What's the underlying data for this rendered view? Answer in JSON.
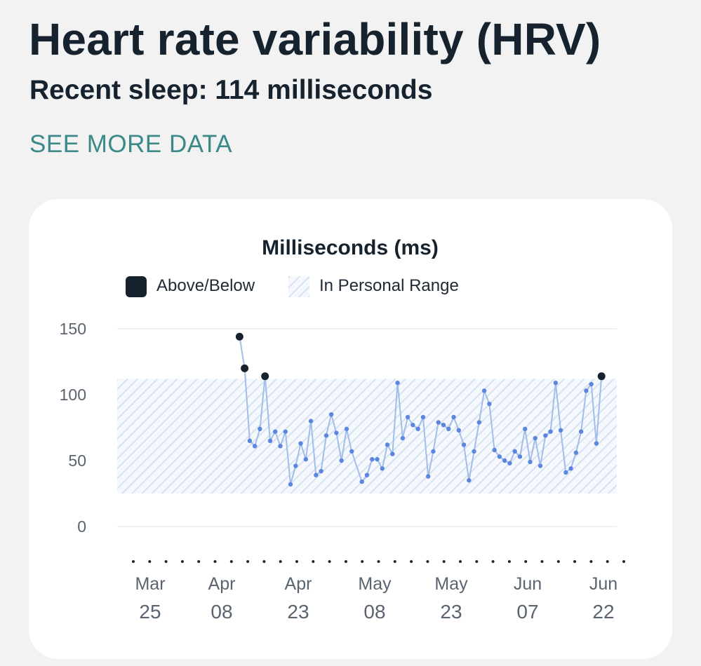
{
  "header": {
    "title": "Heart rate variability (HRV)",
    "subtitle": "Recent sleep: 114 milliseconds",
    "link": "SEE MORE DATA"
  },
  "colors": {
    "accent": "#3b8a87",
    "line": "#a3bde9",
    "point": "#5b86e0",
    "highlight": "#16232f",
    "band": "#dbe5f2"
  },
  "chart_data": {
    "type": "line",
    "title": "Milliseconds (ms)",
    "legend": [
      {
        "label": "Above/Below",
        "style": "dark-square"
      },
      {
        "label": "In Personal Range",
        "style": "hatched"
      }
    ],
    "ylim": [
      0,
      150
    ],
    "yticks": [
      0,
      50,
      100,
      150
    ],
    "personal_range": [
      25,
      112
    ],
    "x_label_lines": [
      [
        "Mar",
        "25"
      ],
      [
        "Apr",
        "08"
      ],
      [
        "Apr",
        "23"
      ],
      [
        "May",
        "08"
      ],
      [
        "May",
        "23"
      ],
      [
        "Jun",
        "07"
      ],
      [
        "Jun",
        "22"
      ]
    ],
    "points": [
      {
        "x": 24,
        "y": 144,
        "status": "out"
      },
      {
        "x": 25,
        "y": 120,
        "status": "out"
      },
      {
        "x": 26,
        "y": 65
      },
      {
        "x": 27,
        "y": 61
      },
      {
        "x": 28,
        "y": 74
      },
      {
        "x": 29,
        "y": 114,
        "status": "out"
      },
      {
        "x": 30,
        "y": 65
      },
      {
        "x": 31,
        "y": 72
      },
      {
        "x": 32,
        "y": 61
      },
      {
        "x": 33,
        "y": 72
      },
      {
        "x": 34,
        "y": 32
      },
      {
        "x": 35,
        "y": 46
      },
      {
        "x": 36,
        "y": 63
      },
      {
        "x": 37,
        "y": 51
      },
      {
        "x": 38,
        "y": 80
      },
      {
        "x": 39,
        "y": 39
      },
      {
        "x": 40,
        "y": 42
      },
      {
        "x": 41,
        "y": 69
      },
      {
        "x": 42,
        "y": 85
      },
      {
        "x": 43,
        "y": 71
      },
      {
        "x": 44,
        "y": 50
      },
      {
        "x": 45,
        "y": 74
      },
      {
        "x": 46,
        "y": 57
      },
      {
        "x": 48,
        "y": 34
      },
      {
        "x": 49,
        "y": 39
      },
      {
        "x": 50,
        "y": 51
      },
      {
        "x": 51,
        "y": 51
      },
      {
        "x": 52,
        "y": 44
      },
      {
        "x": 53,
        "y": 62
      },
      {
        "x": 54,
        "y": 55
      },
      {
        "x": 55,
        "y": 109
      },
      {
        "x": 56,
        "y": 67
      },
      {
        "x": 57,
        "y": 83
      },
      {
        "x": 58,
        "y": 77
      },
      {
        "x": 59,
        "y": 74
      },
      {
        "x": 60,
        "y": 83
      },
      {
        "x": 61,
        "y": 38
      },
      {
        "x": 62,
        "y": 57
      },
      {
        "x": 63,
        "y": 79
      },
      {
        "x": 64,
        "y": 77
      },
      {
        "x": 65,
        "y": 74
      },
      {
        "x": 66,
        "y": 83
      },
      {
        "x": 67,
        "y": 73
      },
      {
        "x": 68,
        "y": 62
      },
      {
        "x": 69,
        "y": 35
      },
      {
        "x": 70,
        "y": 57
      },
      {
        "x": 71,
        "y": 79
      },
      {
        "x": 72,
        "y": 103
      },
      {
        "x": 73,
        "y": 93
      },
      {
        "x": 74,
        "y": 58
      },
      {
        "x": 75,
        "y": 53
      },
      {
        "x": 76,
        "y": 50
      },
      {
        "x": 77,
        "y": 48
      },
      {
        "x": 78,
        "y": 57
      },
      {
        "x": 79,
        "y": 53
      },
      {
        "x": 80,
        "y": 74
      },
      {
        "x": 81,
        "y": 49
      },
      {
        "x": 82,
        "y": 67
      },
      {
        "x": 83,
        "y": 46
      },
      {
        "x": 84,
        "y": 69
      },
      {
        "x": 85,
        "y": 72
      },
      {
        "x": 86,
        "y": 109
      },
      {
        "x": 87,
        "y": 73
      },
      {
        "x": 88,
        "y": 41
      },
      {
        "x": 89,
        "y": 44
      },
      {
        "x": 90,
        "y": 56
      },
      {
        "x": 91,
        "y": 72
      },
      {
        "x": 92,
        "y": 103
      },
      {
        "x": 93,
        "y": 108
      },
      {
        "x": 94,
        "y": 63
      },
      {
        "x": 95,
        "y": 114,
        "status": "out"
      }
    ],
    "x_domain": [
      0,
      98
    ]
  }
}
